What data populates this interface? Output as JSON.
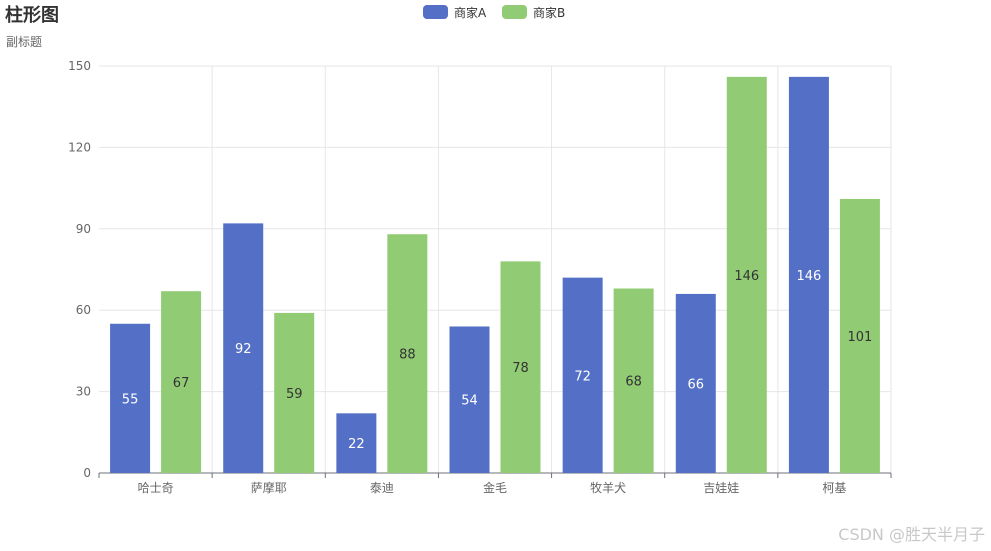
{
  "chart_data": {
    "type": "bar",
    "title": "柱形图",
    "subtitle": "副标题",
    "categories": [
      "哈士奇",
      "萨摩耶",
      "泰迪",
      "金毛",
      "牧羊犬",
      "吉娃娃",
      "柯基"
    ],
    "series": [
      {
        "name": "商家A",
        "color": "#5470c6",
        "label_color": "#ffffff",
        "values": [
          55,
          92,
          22,
          54,
          72,
          66,
          146
        ]
      },
      {
        "name": "商家B",
        "color": "#91cc75",
        "label_color": "#333333",
        "values": [
          67,
          59,
          88,
          78,
          68,
          146,
          101
        ]
      }
    ],
    "ylim": [
      0,
      150
    ],
    "yticks": [
      0,
      30,
      60,
      90,
      120,
      150
    ],
    "grid": true,
    "legend_position": "top-center",
    "data_labels": "inside"
  },
  "watermark": "CSDN @胜天半月子"
}
